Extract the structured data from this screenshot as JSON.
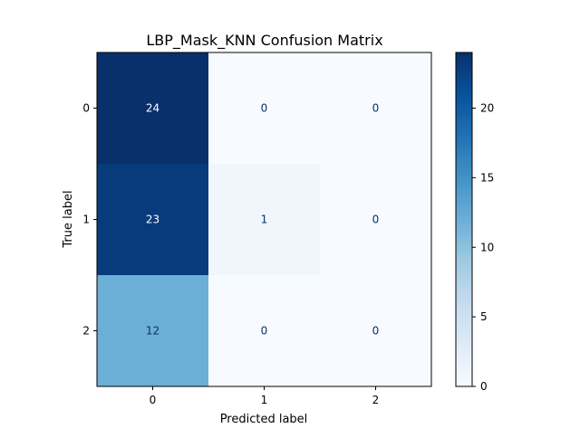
{
  "chart_data": {
    "type": "heatmap",
    "title": "LBP_Mask_KNN Confusion Matrix",
    "xlabel": "Predicted label",
    "ylabel": "True label",
    "x_categories": [
      "0",
      "1",
      "2"
    ],
    "y_categories": [
      "0",
      "1",
      "2"
    ],
    "values": [
      [
        24,
        0,
        0
      ],
      [
        23,
        1,
        0
      ],
      [
        12,
        0,
        0
      ]
    ],
    "colormap": "Blues",
    "color_range": [
      0,
      24
    ],
    "colorbar": {
      "ticks": [
        0,
        5,
        10,
        15,
        20
      ],
      "tick_labels": [
        "0",
        "5",
        "10",
        "15",
        "20"
      ]
    },
    "grid": false
  }
}
